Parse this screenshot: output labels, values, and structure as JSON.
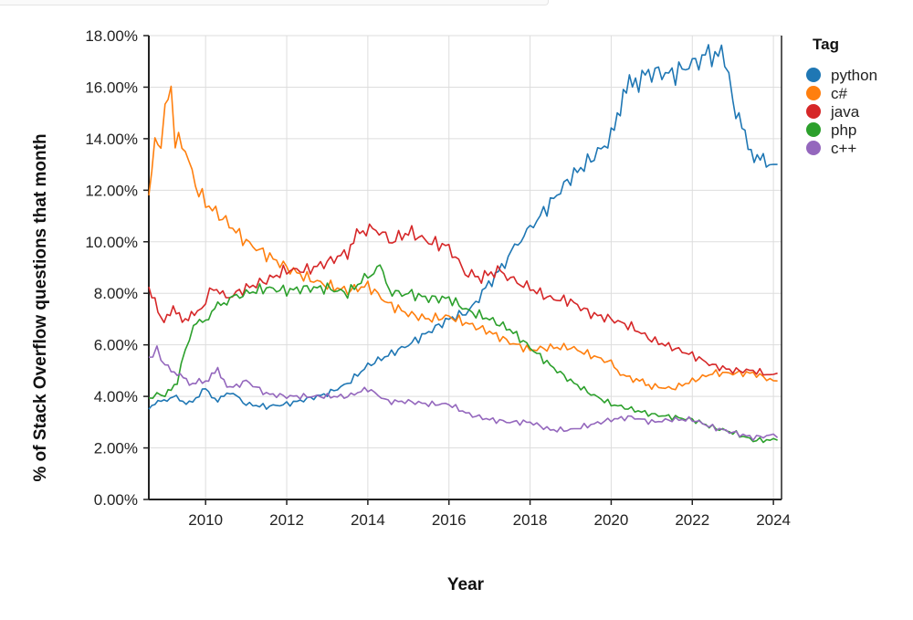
{
  "chart_data": {
    "type": "line",
    "xlabel": "Year",
    "ylabel": "% of Stack Overflow questions that month",
    "xlim": [
      2008.6,
      2024.2
    ],
    "ylim": [
      0,
      18
    ],
    "x_ticks": [
      2010,
      2012,
      2014,
      2016,
      2018,
      2020,
      2022,
      2024
    ],
    "y_ticks": [
      "0.00%",
      "2.00%",
      "4.00%",
      "6.00%",
      "8.00%",
      "10.00%",
      "12.00%",
      "14.00%",
      "16.00%",
      "18.00%"
    ],
    "grid": true,
    "legend": {
      "title": "Tag",
      "placement": "top-right"
    },
    "series": [
      {
        "name": "python",
        "color": "#1f77b4",
        "points": [
          [
            2008.6,
            3.6
          ],
          [
            2008.9,
            3.8
          ],
          [
            2009.2,
            4.0
          ],
          [
            2009.6,
            3.7
          ],
          [
            2010.0,
            4.3
          ],
          [
            2010.3,
            3.8
          ],
          [
            2010.6,
            4.2
          ],
          [
            2011.0,
            3.7
          ],
          [
            2011.5,
            3.6
          ],
          [
            2012.0,
            3.7
          ],
          [
            2012.5,
            3.9
          ],
          [
            2013.0,
            4.1
          ],
          [
            2013.5,
            4.5
          ],
          [
            2014.0,
            5.2
          ],
          [
            2014.5,
            5.6
          ],
          [
            2015.0,
            6.0
          ],
          [
            2015.5,
            6.5
          ],
          [
            2016.0,
            7.0
          ],
          [
            2016.5,
            7.3
          ],
          [
            2016.9,
            8.2
          ],
          [
            2017.3,
            9.0
          ],
          [
            2017.7,
            10.0
          ],
          [
            2018.0,
            10.5
          ],
          [
            2018.5,
            11.5
          ],
          [
            2019.0,
            12.5
          ],
          [
            2019.5,
            13.2
          ],
          [
            2020.0,
            14.0
          ],
          [
            2020.3,
            15.8
          ],
          [
            2020.6,
            16.2
          ],
          [
            2021.0,
            16.6
          ],
          [
            2021.5,
            16.5
          ],
          [
            2022.0,
            16.9
          ],
          [
            2022.4,
            17.3
          ],
          [
            2022.8,
            17.2
          ],
          [
            2023.0,
            15.5
          ],
          [
            2023.3,
            14.0
          ],
          [
            2023.6,
            13.2
          ],
          [
            2023.9,
            13.0
          ],
          [
            2024.1,
            13.0
          ]
        ]
      },
      {
        "name": "c#",
        "color": "#ff7f0e",
        "points": [
          [
            2008.6,
            11.9
          ],
          [
            2008.75,
            13.8
          ],
          [
            2008.9,
            13.5
          ],
          [
            2009.0,
            15.2
          ],
          [
            2009.15,
            15.7
          ],
          [
            2009.25,
            14.0
          ],
          [
            2009.5,
            13.6
          ],
          [
            2009.75,
            12.2
          ],
          [
            2010.0,
            11.5
          ],
          [
            2010.5,
            10.8
          ],
          [
            2011.0,
            10.0
          ],
          [
            2011.5,
            9.5
          ],
          [
            2012.0,
            9.0
          ],
          [
            2012.5,
            8.6
          ],
          [
            2013.0,
            8.3
          ],
          [
            2013.5,
            8.1
          ],
          [
            2014.0,
            8.3
          ],
          [
            2014.5,
            7.6
          ],
          [
            2015.0,
            7.2
          ],
          [
            2015.5,
            7.0
          ],
          [
            2016.0,
            7.1
          ],
          [
            2016.5,
            6.8
          ],
          [
            2017.0,
            6.5
          ],
          [
            2017.5,
            6.1
          ],
          [
            2018.0,
            5.8
          ],
          [
            2018.5,
            5.9
          ],
          [
            2019.0,
            5.9
          ],
          [
            2019.5,
            5.6
          ],
          [
            2020.0,
            5.3
          ],
          [
            2020.3,
            4.8
          ],
          [
            2020.7,
            4.6
          ],
          [
            2021.0,
            4.4
          ],
          [
            2021.5,
            4.3
          ],
          [
            2022.0,
            4.6
          ],
          [
            2022.5,
            4.9
          ],
          [
            2023.0,
            4.9
          ],
          [
            2023.5,
            4.9
          ],
          [
            2024.0,
            4.6
          ],
          [
            2024.1,
            4.6
          ]
        ]
      },
      {
        "name": "java",
        "color": "#d62728",
        "points": [
          [
            2008.6,
            8.2
          ],
          [
            2008.9,
            7.0
          ],
          [
            2009.2,
            7.3
          ],
          [
            2009.5,
            7.0
          ],
          [
            2009.8,
            7.2
          ],
          [
            2010.0,
            7.7
          ],
          [
            2010.2,
            8.3
          ],
          [
            2010.5,
            7.8
          ],
          [
            2011.0,
            8.2
          ],
          [
            2011.5,
            8.5
          ],
          [
            2012.0,
            8.9
          ],
          [
            2012.5,
            8.9
          ],
          [
            2013.0,
            9.2
          ],
          [
            2013.5,
            9.6
          ],
          [
            2013.8,
            10.4
          ],
          [
            2014.2,
            10.5
          ],
          [
            2014.6,
            10.0
          ],
          [
            2015.0,
            10.4
          ],
          [
            2015.5,
            10.0
          ],
          [
            2016.0,
            9.8
          ],
          [
            2016.4,
            8.8
          ],
          [
            2016.8,
            8.6
          ],
          [
            2017.2,
            8.9
          ],
          [
            2017.6,
            8.5
          ],
          [
            2018.0,
            8.2
          ],
          [
            2018.5,
            7.8
          ],
          [
            2019.0,
            7.7
          ],
          [
            2019.5,
            7.2
          ],
          [
            2020.0,
            7.0
          ],
          [
            2020.5,
            6.7
          ],
          [
            2021.0,
            6.2
          ],
          [
            2021.5,
            5.9
          ],
          [
            2022.0,
            5.6
          ],
          [
            2022.5,
            5.2
          ],
          [
            2023.0,
            5.0
          ],
          [
            2023.5,
            5.0
          ],
          [
            2024.0,
            4.8
          ],
          [
            2024.1,
            4.9
          ]
        ]
      },
      {
        "name": "php",
        "color": "#2ca02c",
        "points": [
          [
            2008.6,
            3.9
          ],
          [
            2008.8,
            4.1
          ],
          [
            2009.0,
            4.0
          ],
          [
            2009.3,
            4.6
          ],
          [
            2009.5,
            5.8
          ],
          [
            2009.7,
            6.7
          ],
          [
            2010.0,
            7.0
          ],
          [
            2010.3,
            7.5
          ],
          [
            2010.6,
            7.8
          ],
          [
            2011.0,
            8.0
          ],
          [
            2011.5,
            8.2
          ],
          [
            2012.0,
            8.1
          ],
          [
            2012.5,
            8.2
          ],
          [
            2013.0,
            8.2
          ],
          [
            2013.5,
            8.0
          ],
          [
            2014.0,
            8.7
          ],
          [
            2014.3,
            9.0
          ],
          [
            2014.6,
            8.0
          ],
          [
            2015.0,
            8.0
          ],
          [
            2015.5,
            7.8
          ],
          [
            2016.0,
            7.8
          ],
          [
            2016.5,
            7.3
          ],
          [
            2017.0,
            7.0
          ],
          [
            2017.5,
            6.6
          ],
          [
            2018.0,
            5.9
          ],
          [
            2018.5,
            5.2
          ],
          [
            2019.0,
            4.6
          ],
          [
            2019.5,
            4.1
          ],
          [
            2020.0,
            3.7
          ],
          [
            2020.5,
            3.5
          ],
          [
            2021.0,
            3.3
          ],
          [
            2021.5,
            3.2
          ],
          [
            2022.0,
            3.1
          ],
          [
            2022.5,
            2.8
          ],
          [
            2023.0,
            2.6
          ],
          [
            2023.5,
            2.3
          ],
          [
            2024.0,
            2.3
          ],
          [
            2024.1,
            2.3
          ]
        ]
      },
      {
        "name": "c++",
        "color": "#9467bd",
        "points": [
          [
            2008.6,
            5.5
          ],
          [
            2008.8,
            5.8
          ],
          [
            2009.0,
            5.2
          ],
          [
            2009.3,
            4.9
          ],
          [
            2009.6,
            4.5
          ],
          [
            2010.0,
            4.6
          ],
          [
            2010.3,
            5.0
          ],
          [
            2010.6,
            4.3
          ],
          [
            2011.0,
            4.6
          ],
          [
            2011.5,
            4.1
          ],
          [
            2012.0,
            4.0
          ],
          [
            2012.5,
            4.0
          ],
          [
            2013.0,
            4.0
          ],
          [
            2013.5,
            4.0
          ],
          [
            2014.0,
            4.3
          ],
          [
            2014.5,
            3.8
          ],
          [
            2015.0,
            3.8
          ],
          [
            2015.5,
            3.7
          ],
          [
            2016.0,
            3.7
          ],
          [
            2016.5,
            3.3
          ],
          [
            2017.0,
            3.1
          ],
          [
            2017.5,
            3.0
          ],
          [
            2018.0,
            3.0
          ],
          [
            2018.5,
            2.7
          ],
          [
            2019.0,
            2.7
          ],
          [
            2019.5,
            2.9
          ],
          [
            2020.0,
            3.1
          ],
          [
            2020.5,
            3.2
          ],
          [
            2021.0,
            3.0
          ],
          [
            2021.5,
            3.1
          ],
          [
            2022.0,
            3.1
          ],
          [
            2022.5,
            2.8
          ],
          [
            2023.0,
            2.6
          ],
          [
            2023.5,
            2.4
          ],
          [
            2024.0,
            2.5
          ],
          [
            2024.1,
            2.4
          ]
        ]
      }
    ]
  }
}
